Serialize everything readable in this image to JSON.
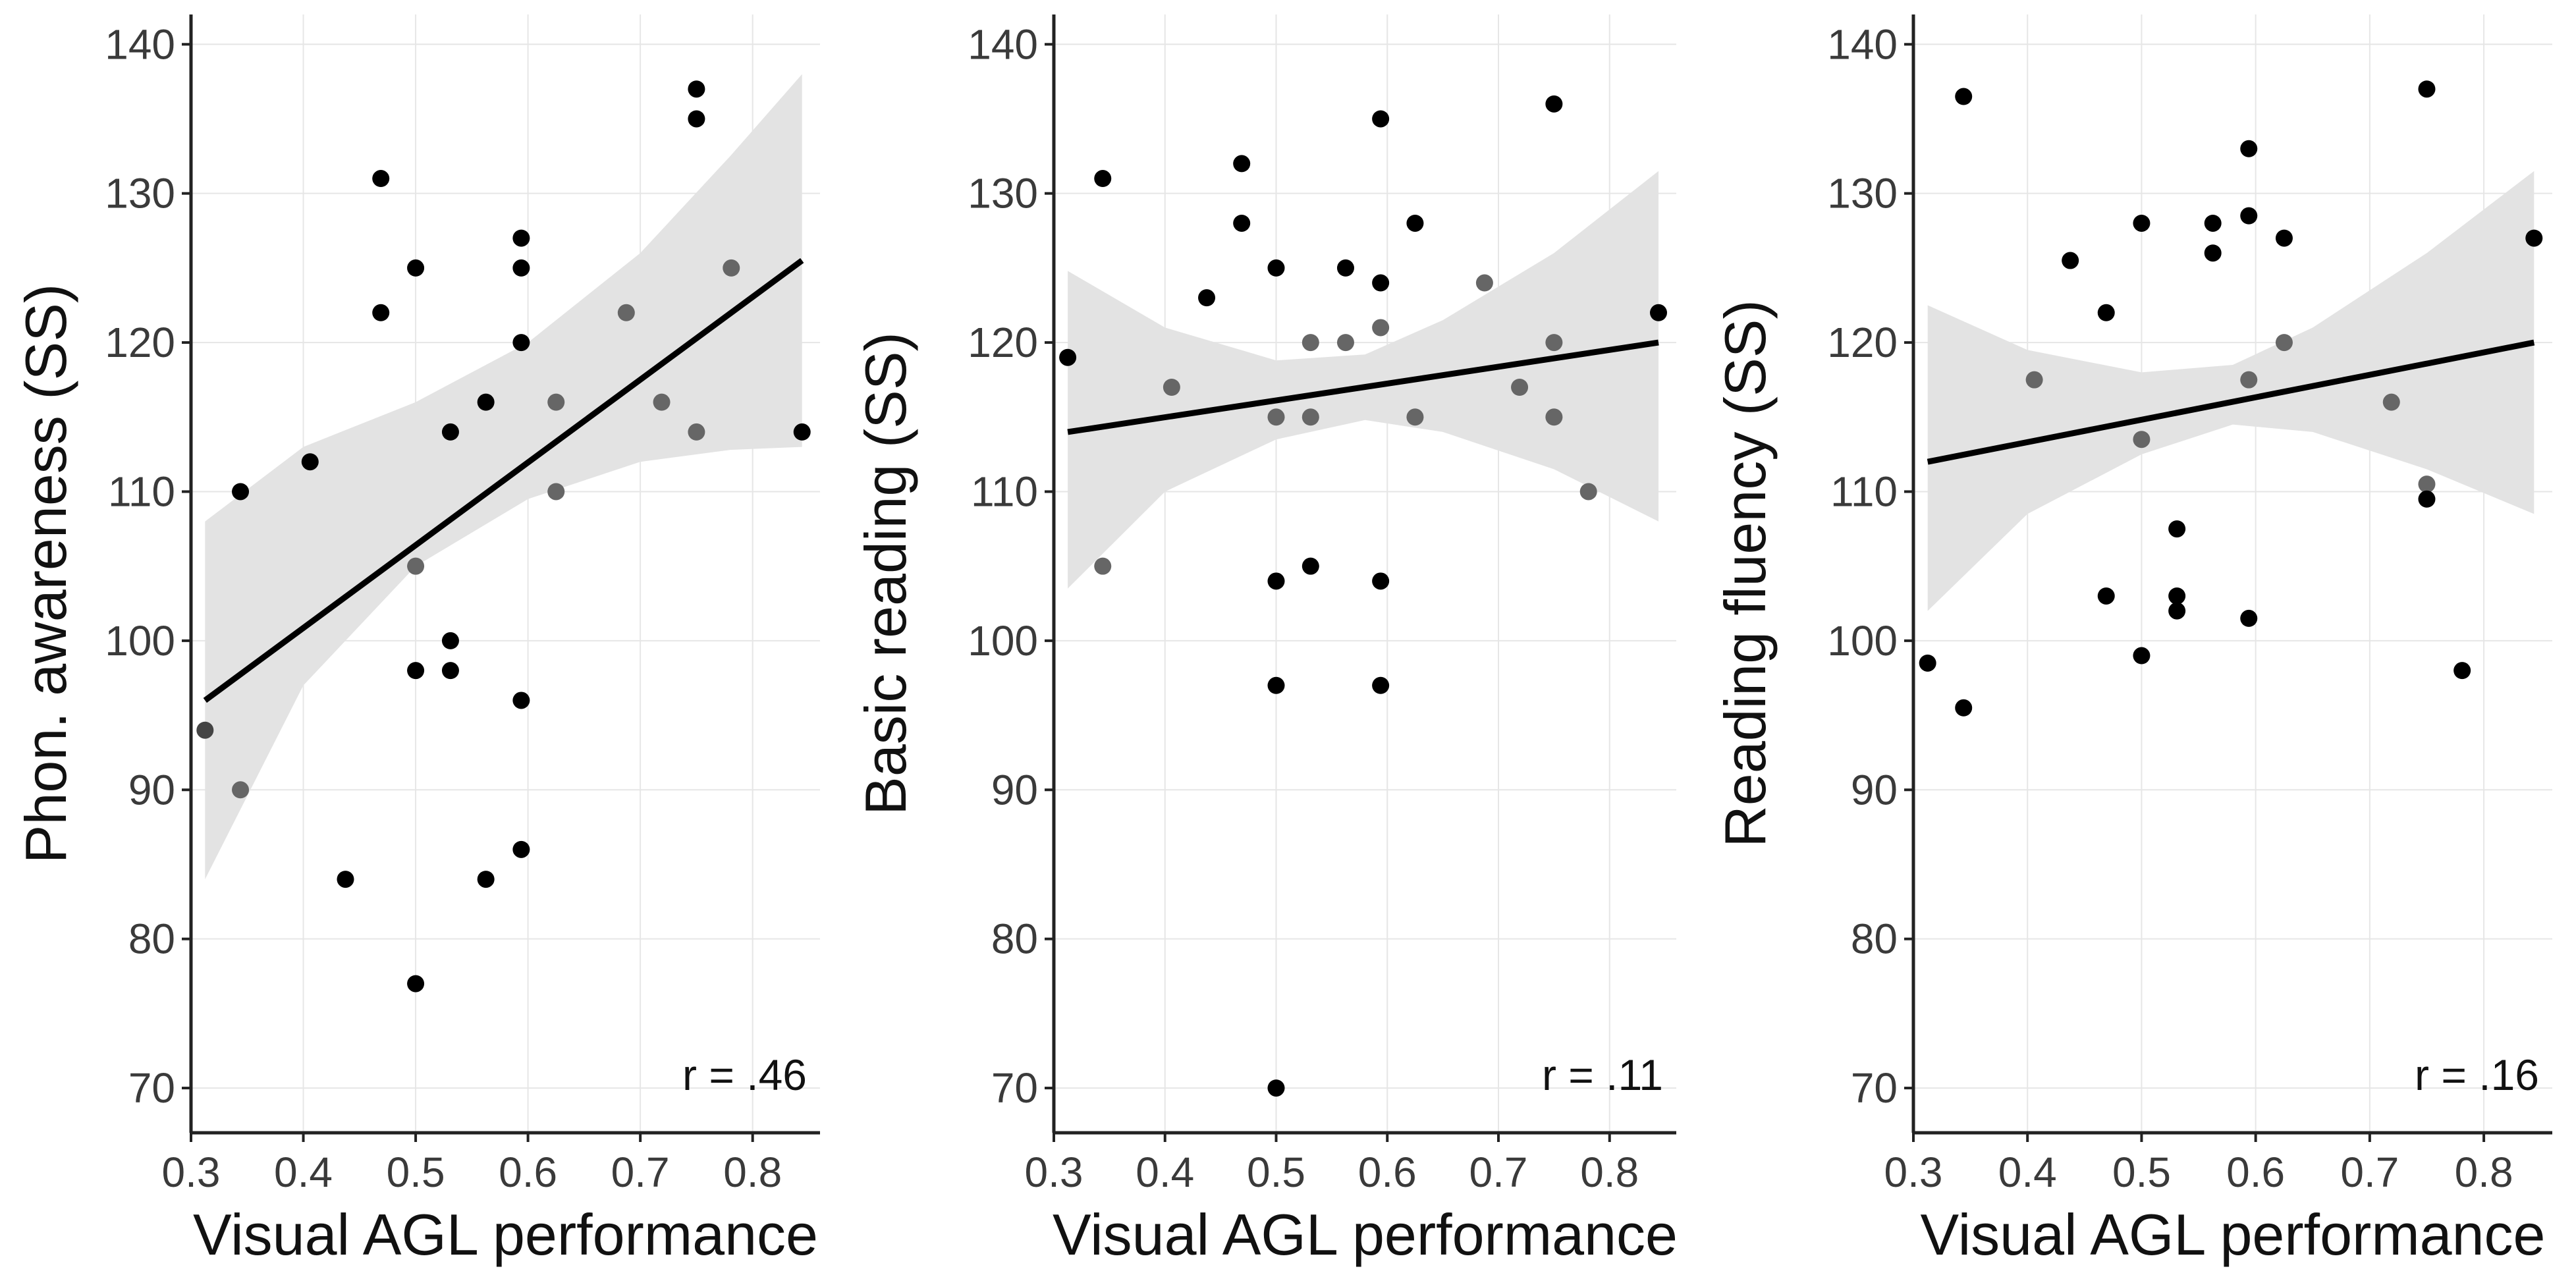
{
  "chart_data": [
    {
      "type": "scatter",
      "xlabel": "Visual AGL performance",
      "ylabel": "Phon. awareness (SS)",
      "xlim": [
        0.3,
        0.86
      ],
      "ylim": [
        67,
        142
      ],
      "xticks": [
        0.3,
        0.4,
        0.5,
        0.6,
        0.7,
        0.8
      ],
      "xtick_labels": [
        "0.3",
        "0.4",
        "0.5",
        "0.6",
        "0.7",
        "0.8"
      ],
      "yticks": [
        70,
        80,
        90,
        100,
        110,
        120,
        130,
        140
      ],
      "ytick_labels": [
        "70",
        "80",
        "90",
        "100",
        "110",
        "120",
        "130",
        "140"
      ],
      "grid": true,
      "annotation": "r = .46",
      "fit": {
        "x": [
          0.3125,
          0.844
        ],
        "y": [
          96,
          125.5
        ]
      },
      "ci_band": {
        "x": [
          0.3125,
          0.4,
          0.5,
          0.6,
          0.7,
          0.78,
          0.844
        ],
        "lower": [
          84,
          97,
          105,
          109.5,
          112,
          112.8,
          113
        ],
        "upper": [
          108,
          113,
          116,
          120,
          126,
          132.5,
          138
        ]
      },
      "points": [
        {
          "x": 0.3125,
          "y": 94,
          "color": "#444444"
        },
        {
          "x": 0.344,
          "y": 110,
          "color": "#000000"
        },
        {
          "x": 0.344,
          "y": 90,
          "color": "#666666"
        },
        {
          "x": 0.406,
          "y": 112,
          "color": "#000000"
        },
        {
          "x": 0.4375,
          "y": 84,
          "color": "#000000"
        },
        {
          "x": 0.469,
          "y": 131,
          "color": "#000000"
        },
        {
          "x": 0.469,
          "y": 122,
          "color": "#000000"
        },
        {
          "x": 0.5,
          "y": 125,
          "color": "#000000"
        },
        {
          "x": 0.5,
          "y": 105,
          "color": "#666666"
        },
        {
          "x": 0.5,
          "y": 98,
          "color": "#000000"
        },
        {
          "x": 0.5,
          "y": 77,
          "color": "#000000"
        },
        {
          "x": 0.531,
          "y": 114,
          "color": "#000000"
        },
        {
          "x": 0.531,
          "y": 100,
          "color": "#000000"
        },
        {
          "x": 0.531,
          "y": 98,
          "color": "#000000"
        },
        {
          "x": 0.5625,
          "y": 116,
          "color": "#000000"
        },
        {
          "x": 0.5625,
          "y": 84,
          "color": "#000000"
        },
        {
          "x": 0.594,
          "y": 127,
          "color": "#000000"
        },
        {
          "x": 0.594,
          "y": 125,
          "color": "#000000"
        },
        {
          "x": 0.594,
          "y": 120,
          "color": "#000000"
        },
        {
          "x": 0.594,
          "y": 96,
          "color": "#000000"
        },
        {
          "x": 0.594,
          "y": 86,
          "color": "#000000"
        },
        {
          "x": 0.625,
          "y": 116,
          "color": "#666666"
        },
        {
          "x": 0.625,
          "y": 110,
          "color": "#666666"
        },
        {
          "x": 0.6875,
          "y": 122,
          "color": "#666666"
        },
        {
          "x": 0.719,
          "y": 116,
          "color": "#666666"
        },
        {
          "x": 0.75,
          "y": 137,
          "color": "#000000"
        },
        {
          "x": 0.75,
          "y": 135,
          "color": "#000000"
        },
        {
          "x": 0.75,
          "y": 114,
          "color": "#666666"
        },
        {
          "x": 0.781,
          "y": 125,
          "color": "#666666"
        },
        {
          "x": 0.844,
          "y": 114,
          "color": "#000000"
        }
      ]
    },
    {
      "type": "scatter",
      "xlabel": "Visual AGL performance",
      "ylabel": "Basic reading (SS)",
      "xlim": [
        0.3,
        0.86
      ],
      "ylim": [
        67,
        142
      ],
      "xticks": [
        0.3,
        0.4,
        0.5,
        0.6,
        0.7,
        0.8
      ],
      "xtick_labels": [
        "0.3",
        "0.4",
        "0.5",
        "0.6",
        "0.7",
        "0.8"
      ],
      "yticks": [
        70,
        80,
        90,
        100,
        110,
        120,
        130,
        140
      ],
      "ytick_labels": [
        "70",
        "80",
        "90",
        "100",
        "110",
        "120",
        "130",
        "140"
      ],
      "grid": true,
      "annotation": "r = .11",
      "fit": {
        "x": [
          0.3125,
          0.844
        ],
        "y": [
          114,
          120
        ]
      },
      "ci_band": {
        "x": [
          0.3125,
          0.4,
          0.5,
          0.58,
          0.65,
          0.75,
          0.844
        ],
        "lower": [
          103.5,
          110,
          113.5,
          114.8,
          114,
          111.5,
          108
        ],
        "upper": [
          124.8,
          121,
          118.8,
          119.2,
          121.5,
          126,
          131.5
        ]
      },
      "points": [
        {
          "x": 0.3125,
          "y": 119,
          "color": "#000000"
        },
        {
          "x": 0.344,
          "y": 131,
          "color": "#000000"
        },
        {
          "x": 0.344,
          "y": 105,
          "color": "#666666"
        },
        {
          "x": 0.406,
          "y": 117,
          "color": "#666666"
        },
        {
          "x": 0.4375,
          "y": 123,
          "color": "#000000"
        },
        {
          "x": 0.469,
          "y": 132,
          "color": "#000000"
        },
        {
          "x": 0.469,
          "y": 128,
          "color": "#000000"
        },
        {
          "x": 0.5,
          "y": 125,
          "color": "#000000"
        },
        {
          "x": 0.5,
          "y": 115,
          "color": "#666666"
        },
        {
          "x": 0.5,
          "y": 104,
          "color": "#000000"
        },
        {
          "x": 0.5,
          "y": 97,
          "color": "#000000"
        },
        {
          "x": 0.5,
          "y": 70,
          "color": "#000000"
        },
        {
          "x": 0.531,
          "y": 120,
          "color": "#666666"
        },
        {
          "x": 0.531,
          "y": 115,
          "color": "#666666"
        },
        {
          "x": 0.531,
          "y": 105,
          "color": "#000000"
        },
        {
          "x": 0.5625,
          "y": 125,
          "color": "#000000"
        },
        {
          "x": 0.5625,
          "y": 120,
          "color": "#666666"
        },
        {
          "x": 0.594,
          "y": 135,
          "color": "#000000"
        },
        {
          "x": 0.594,
          "y": 124,
          "color": "#000000"
        },
        {
          "x": 0.594,
          "y": 121,
          "color": "#666666"
        },
        {
          "x": 0.594,
          "y": 104,
          "color": "#000000"
        },
        {
          "x": 0.594,
          "y": 97,
          "color": "#000000"
        },
        {
          "x": 0.625,
          "y": 128,
          "color": "#000000"
        },
        {
          "x": 0.625,
          "y": 115,
          "color": "#666666"
        },
        {
          "x": 0.6875,
          "y": 124,
          "color": "#666666"
        },
        {
          "x": 0.719,
          "y": 117,
          "color": "#666666"
        },
        {
          "x": 0.75,
          "y": 136,
          "color": "#000000"
        },
        {
          "x": 0.75,
          "y": 120,
          "color": "#666666"
        },
        {
          "x": 0.75,
          "y": 115,
          "color": "#666666"
        },
        {
          "x": 0.781,
          "y": 110,
          "color": "#666666"
        },
        {
          "x": 0.844,
          "y": 122,
          "color": "#000000"
        }
      ]
    },
    {
      "type": "scatter",
      "xlabel": "Visual AGL performance",
      "ylabel": "Reading fluency (SS)",
      "xlim": [
        0.3,
        0.86
      ],
      "ylim": [
        67,
        142
      ],
      "xticks": [
        0.3,
        0.4,
        0.5,
        0.6,
        0.7,
        0.8
      ],
      "xtick_labels": [
        "0.3",
        "0.4",
        "0.5",
        "0.6",
        "0.7",
        "0.8"
      ],
      "yticks": [
        70,
        80,
        90,
        100,
        110,
        120,
        130,
        140
      ],
      "ytick_labels": [
        "70",
        "80",
        "90",
        "100",
        "110",
        "120",
        "130",
        "140"
      ],
      "grid": true,
      "annotation": "r = .16",
      "fit": {
        "x": [
          0.3125,
          0.844
        ],
        "y": [
          112,
          120
        ]
      },
      "ci_band": {
        "x": [
          0.3125,
          0.4,
          0.5,
          0.58,
          0.65,
          0.75,
          0.844
        ],
        "lower": [
          102,
          108.5,
          112.5,
          114.5,
          114,
          111.5,
          108.5
        ],
        "upper": [
          122.5,
          119.5,
          118,
          118.5,
          121,
          126,
          131.5
        ]
      },
      "points": [
        {
          "x": 0.3125,
          "y": 98.5,
          "color": "#000000"
        },
        {
          "x": 0.344,
          "y": 136.5,
          "color": "#000000"
        },
        {
          "x": 0.344,
          "y": 95.5,
          "color": "#000000"
        },
        {
          "x": 0.406,
          "y": 117.5,
          "color": "#666666"
        },
        {
          "x": 0.4375,
          "y": 125.5,
          "color": "#000000"
        },
        {
          "x": 0.469,
          "y": 122,
          "color": "#000000"
        },
        {
          "x": 0.469,
          "y": 103,
          "color": "#000000"
        },
        {
          "x": 0.5,
          "y": 128,
          "color": "#000000"
        },
        {
          "x": 0.5,
          "y": 113.5,
          "color": "#666666"
        },
        {
          "x": 0.5,
          "y": 99,
          "color": "#000000"
        },
        {
          "x": 0.531,
          "y": 107.5,
          "color": "#000000"
        },
        {
          "x": 0.531,
          "y": 103,
          "color": "#000000"
        },
        {
          "x": 0.531,
          "y": 102,
          "color": "#000000"
        },
        {
          "x": 0.5625,
          "y": 128,
          "color": "#000000"
        },
        {
          "x": 0.5625,
          "y": 126,
          "color": "#000000"
        },
        {
          "x": 0.594,
          "y": 133,
          "color": "#000000"
        },
        {
          "x": 0.594,
          "y": 128.5,
          "color": "#000000"
        },
        {
          "x": 0.594,
          "y": 117.5,
          "color": "#666666"
        },
        {
          "x": 0.594,
          "y": 101.5,
          "color": "#000000"
        },
        {
          "x": 0.625,
          "y": 127,
          "color": "#000000"
        },
        {
          "x": 0.625,
          "y": 120,
          "color": "#666666"
        },
        {
          "x": 0.719,
          "y": 116,
          "color": "#666666"
        },
        {
          "x": 0.75,
          "y": 137,
          "color": "#000000"
        },
        {
          "x": 0.75,
          "y": 110.5,
          "color": "#666666"
        },
        {
          "x": 0.75,
          "y": 109.5,
          "color": "#000000"
        },
        {
          "x": 0.781,
          "y": 98,
          "color": "#000000"
        },
        {
          "x": 0.844,
          "y": 127,
          "color": "#000000"
        }
      ]
    }
  ]
}
